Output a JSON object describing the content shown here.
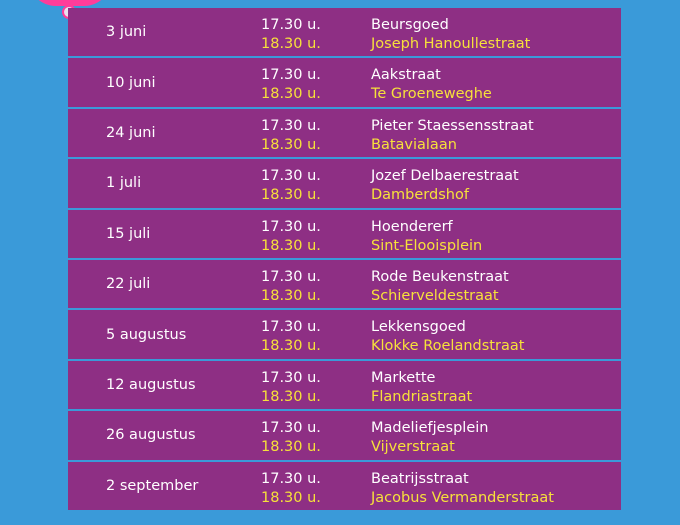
{
  "colors": {
    "background": "#3a9ad9",
    "row": "#8e2f84",
    "accent_yellow": "#f7e13a",
    "accent_pink": "#ff3d9a"
  },
  "schedule": [
    {
      "date": "3 juni",
      "time1": "17.30 u.",
      "time2": "18.30 u.",
      "place1": "Beursgoed",
      "place2": "Joseph Hanoullestraat"
    },
    {
      "date": "10 juni",
      "time1": "17.30 u.",
      "time2": "18.30 u.",
      "place1": "Aakstraat",
      "place2": "Te Groeneweghe"
    },
    {
      "date": "24 juni",
      "time1": "17.30 u.",
      "time2": "18.30 u.",
      "place1": "Pieter Staessensstraat",
      "place2": "Batavialaan"
    },
    {
      "date": "1 juli",
      "time1": "17.30 u.",
      "time2": "18.30 u.",
      "place1": "Jozef Delbaerestraat",
      "place2": "Damberdshof"
    },
    {
      "date": "15 juli",
      "time1": "17.30 u.",
      "time2": "18.30 u.",
      "place1": "Hoendererf",
      "place2": "Sint-Elooisplein"
    },
    {
      "date": "22 juli",
      "time1": "17.30 u.",
      "time2": "18.30 u.",
      "place1": "Rode Beukenstraat",
      "place2": "Schierveldestraat"
    },
    {
      "date": "5 augustus",
      "time1": "17.30 u.",
      "time2": "18.30 u.",
      "place1": "Lekkensgoed",
      "place2": "Klokke Roelandstraat"
    },
    {
      "date": "12 augustus",
      "time1": "17.30 u.",
      "time2": "18.30 u.",
      "place1": "Markette",
      "place2": "Flandriastraat"
    },
    {
      "date": "26 augustus",
      "time1": "17.30 u.",
      "time2": "18.30 u.",
      "place1": "Madeliefjesplein",
      "place2": "Vijverstraat"
    },
    {
      "date": "2 september",
      "time1": "17.30 u.",
      "time2": "18.30 u.",
      "place1": "Beatrijsstraat",
      "place2": "Jacobus Vermanderstraat"
    }
  ]
}
